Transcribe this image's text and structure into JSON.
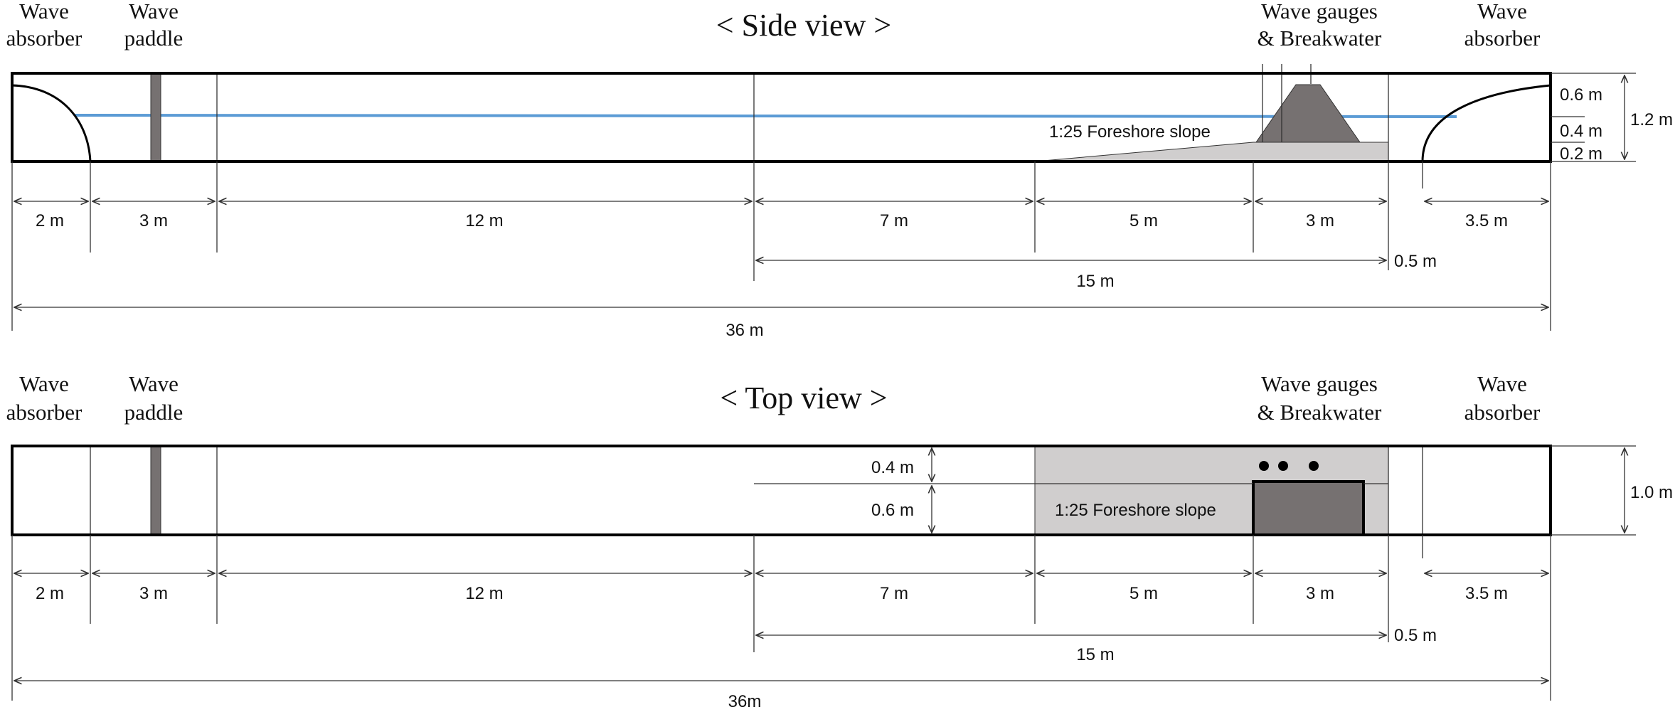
{
  "side_view": {
    "title": "< Side view >",
    "label_absorber_left": [
      "Wave",
      "absorber"
    ],
    "label_paddle": [
      "Wave",
      "paddle"
    ],
    "label_gauges": [
      "Wave gauges",
      "& Breakwater"
    ],
    "label_absorber_right": [
      "Wave",
      "absorber"
    ],
    "slope_label": "1:25 Foreshore slope",
    "height_total": "1.2 m",
    "height_top": "0.6 m",
    "height_mid": "0.4 m",
    "height_bottom": "0.2 m",
    "segments": [
      "2 m",
      "3 m",
      "12 m",
      "7 m",
      "5 m",
      "3 m",
      "3.5 m"
    ],
    "gap_label": "0.5 m",
    "span_label": "15 m",
    "total_label": "36 m"
  },
  "top_view": {
    "title": "< Top view >",
    "label_absorber_left": [
      "Wave",
      "absorber"
    ],
    "label_paddle": [
      "Wave",
      "paddle"
    ],
    "label_gauges": [
      "Wave gauges",
      "& Breakwater"
    ],
    "label_absorber_right": [
      "Wave",
      "absorber"
    ],
    "slope_label": "1:25 Foreshore slope",
    "width_total": "1.0 m",
    "width_top": "0.4 m",
    "width_bottom": "0.6 m",
    "segments": [
      "2 m",
      "3 m",
      "12 m",
      "7 m",
      "5 m",
      "3 m",
      "3.5 m"
    ],
    "gap_label": "0.5 m",
    "span_label": "15 m",
    "total_label": "36m"
  },
  "colors": {
    "water": "#5b9bd5",
    "breakwater": "#767171",
    "slope": "#d0cece",
    "paddle": "#767171"
  }
}
